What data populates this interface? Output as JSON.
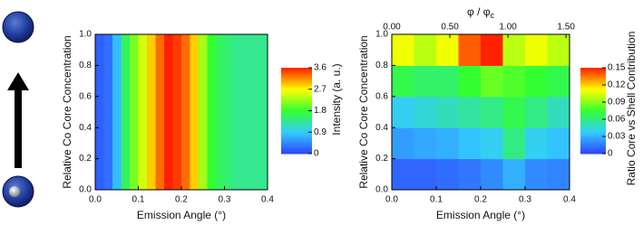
{
  "chart_data": [
    {
      "type": "heatmap",
      "xlabel": "Emission Angle (°)",
      "ylabel": "Relative Co Core Concentration",
      "colorbar_label": "Intensity (a. u.)",
      "x": [
        0,
        0.02,
        0.04,
        0.06,
        0.08,
        0.1,
        0.12,
        0.14,
        0.16,
        0.18,
        0.2,
        0.22,
        0.24,
        0.26,
        0.28,
        0.3,
        0.32,
        0.34,
        0.36,
        0.38,
        0.4
      ],
      "y": [
        0,
        1
      ],
      "values": [
        [
          0.2,
          0.3,
          0.8,
          1.6,
          2.1,
          2.5,
          2.9,
          3.3,
          3.6,
          3.5,
          3.3,
          2.9,
          2.3,
          1.8,
          1.6,
          1.5,
          1.4,
          1.4,
          1.4,
          1.4
        ]
      ],
      "xlim": [
        0,
        0.4
      ],
      "ylim": [
        0,
        1
      ],
      "xticks": [
        {
          "value": 0,
          "label": "0.0"
        },
        0.1,
        0.2,
        0.3,
        0.4
      ],
      "yticks": [
        {
          "value": 0,
          "label": "0.0"
        },
        0.2,
        0.4,
        0.6,
        0.8,
        {
          "value": 1,
          "label": "1.0"
        }
      ],
      "clim": [
        0,
        3.6
      ],
      "cticks": [
        0,
        0.9,
        1.8,
        2.7,
        3.6
      ],
      "colormap": [
        "#2f40ff",
        "#33ccff",
        "#33ff33",
        "#ffff00",
        "#ff2200"
      ]
    },
    {
      "type": "heatmap",
      "xlabel": "Emission Angle (°)",
      "ylabel": "Relative Co Core Concentration",
      "colorbar_label": "Ratio Core vs Shell Contribution",
      "top_axis_label": "φ / φ",
      "top_axis_label_sub": "c",
      "x": [
        0,
        0.05,
        0.1,
        0.15,
        0.2,
        0.25,
        0.3,
        0.35,
        0.4
      ],
      "y": [
        0,
        0.2,
        0.4,
        0.6,
        0.8,
        1
      ],
      "values": [
        [
          0.01,
          0.01,
          0.012,
          0.015,
          0.02,
          0.03,
          0.02,
          0.018
        ],
        [
          0.025,
          0.028,
          0.03,
          0.035,
          0.04,
          0.06,
          0.04,
          0.035
        ],
        [
          0.04,
          0.045,
          0.05,
          0.055,
          0.06,
          0.07,
          0.06,
          0.05
        ],
        [
          0.07,
          0.065,
          0.065,
          0.075,
          0.085,
          0.08,
          0.075,
          0.07
        ],
        [
          0.11,
          0.1,
          0.11,
          0.14,
          0.15,
          0.1,
          0.11,
          0.1
        ]
      ],
      "xlim": [
        0,
        0.4
      ],
      "ylim": [
        0,
        1
      ],
      "x2lim": [
        0,
        1.53
      ],
      "xticks": [
        {
          "value": 0,
          "label": "0.0"
        },
        0.1,
        0.2,
        0.3,
        0.4
      ],
      "yticks": [
        {
          "value": 0,
          "label": "0.0"
        },
        0.2,
        0.4,
        0.6,
        0.8,
        {
          "value": 1,
          "label": "1.0"
        }
      ],
      "x2ticks": [
        {
          "value": 0,
          "label": "0.00"
        },
        {
          "value": 0.5,
          "label": "0.50"
        },
        {
          "value": 1,
          "label": "1.00"
        },
        {
          "value": 1.5,
          "label": "1.50"
        }
      ],
      "clim": [
        0,
        0.15
      ],
      "cticks": [
        0,
        0.03,
        0.06,
        0.09,
        0.12,
        0.15
      ],
      "colormap": [
        "#2f40ff",
        "#33ccff",
        "#33ff33",
        "#ffff00",
        "#ff2200"
      ]
    }
  ]
}
